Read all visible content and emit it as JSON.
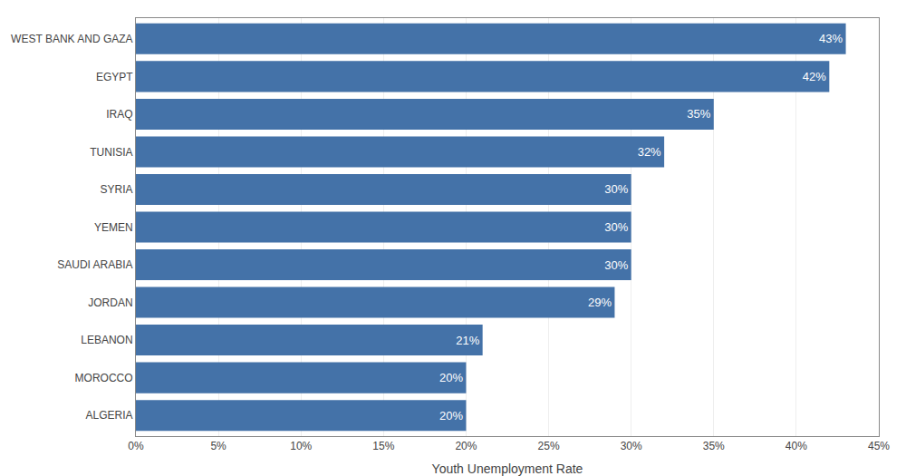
{
  "chart_data": {
    "type": "bar",
    "orientation": "horizontal",
    "categories": [
      "ALGERIA",
      "MOROCCO",
      "LEBANON",
      "JORDAN",
      "SAUDI ARABIA",
      "YEMEN",
      "SYRIA",
      "TUNISIA",
      "IRAQ",
      "EGYPT",
      "WEST BANK AND GAZA"
    ],
    "values": [
      20,
      20,
      21,
      29,
      30,
      30,
      30,
      32,
      35,
      42,
      43
    ],
    "value_labels": [
      "20%",
      "20%",
      "21%",
      "29%",
      "30%",
      "30%",
      "30%",
      "32%",
      "35%",
      "42%",
      "43%"
    ],
    "data_labels": true,
    "color": "#4472A8",
    "xlabel": "Youth Unemployment Rate",
    "xlim": [
      0,
      45
    ],
    "xticks": [
      {
        "value": 0,
        "label": "0%"
      },
      {
        "value": 5,
        "label": "5%"
      },
      {
        "value": 10,
        "label": "10%"
      },
      {
        "value": 15,
        "label": "15%"
      },
      {
        "value": 20,
        "label": "20%"
      },
      {
        "value": 25,
        "label": "25%"
      },
      {
        "value": 30,
        "label": "30%"
      },
      {
        "value": 35,
        "label": "35%"
      },
      {
        "value": 40,
        "label": "40%"
      },
      {
        "value": 45,
        "label": "45%"
      }
    ],
    "grid": true
  }
}
